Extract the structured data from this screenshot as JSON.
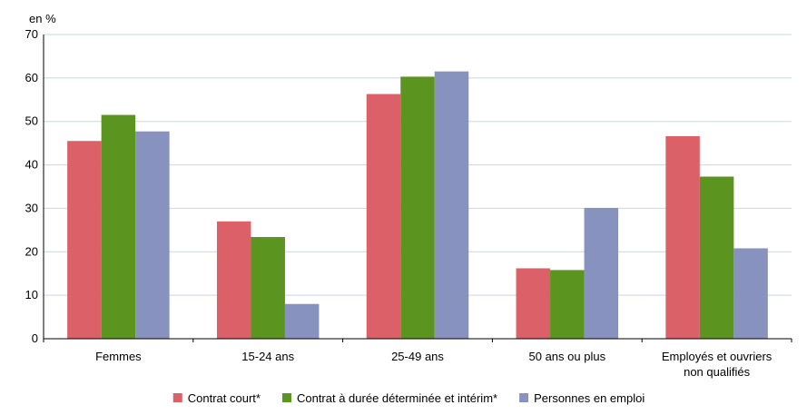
{
  "chart_data": {
    "type": "bar",
    "ylabel": "en %",
    "ylim": [
      0,
      70
    ],
    "yticks": [
      0,
      10,
      20,
      30,
      40,
      50,
      60,
      70
    ],
    "grid": true,
    "legend_position": "bottom",
    "categories": [
      [
        "Femmes"
      ],
      [
        "15-24 ans"
      ],
      [
        "25-49 ans"
      ],
      [
        "50 ans ou plus"
      ],
      [
        "Employés et ouvriers",
        "non qualifiés"
      ]
    ],
    "series": [
      {
        "name": "Contrat court*",
        "color": "#dc6068",
        "values": [
          45.5,
          27.0,
          56.3,
          16.2,
          46.6
        ]
      },
      {
        "name": "Contrat à durée déterminée et intérim*",
        "color": "#5c9420",
        "values": [
          51.5,
          23.4,
          60.3,
          15.8,
          37.3
        ]
      },
      {
        "name": "Personnes en emploi",
        "color": "#8892bf",
        "values": [
          47.7,
          8.0,
          61.5,
          30.1,
          20.8
        ]
      }
    ]
  }
}
